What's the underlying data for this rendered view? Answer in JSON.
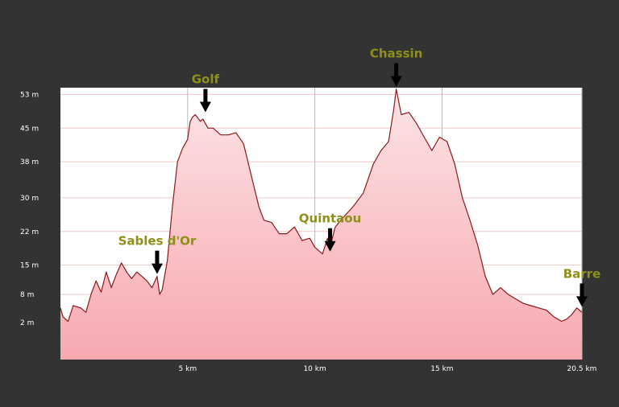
{
  "colors": {
    "background": "#333333",
    "plot_background": "#ffffff",
    "line": "#8b1a1a",
    "fill_top": "#fde4e6",
    "fill_bottom": "#f7a9b0",
    "label_olive": "#8f8f1a",
    "grid_vertical": "#b8b8b8",
    "grid_horizontal": "#f2c6c6"
  },
  "chart_data": {
    "type": "area",
    "title": "",
    "xlabel": "",
    "ylabel": "",
    "xlim": [
      0,
      20.5
    ],
    "ylim": [
      -6,
      54.5
    ],
    "grid": true,
    "yticks": [
      {
        "value": 2.2,
        "label": "2 m"
      },
      {
        "value": 8.5,
        "label": "8 m"
      },
      {
        "value": 15.0,
        "label": "15 m"
      },
      {
        "value": 22.5,
        "label": "22 m"
      },
      {
        "value": 30.0,
        "label": "30 m"
      },
      {
        "value": 38.0,
        "label": "38 m"
      },
      {
        "value": 45.5,
        "label": "45 m"
      },
      {
        "value": 53.0,
        "label": "53 m"
      }
    ],
    "xticks": [
      {
        "value": 5,
        "label": "5 km"
      },
      {
        "value": 10,
        "label": "10 km"
      },
      {
        "value": 15,
        "label": "15 km"
      },
      {
        "value": 20.5,
        "label": "20.5 km"
      }
    ],
    "series": [
      {
        "x": [
          0,
          0.1,
          0.3,
          0.5,
          0.8,
          1.0,
          1.2,
          1.4,
          1.6,
          1.8,
          2.0,
          2.2,
          2.4,
          2.6,
          2.8,
          3.0,
          3.2,
          3.4,
          3.6,
          3.8,
          3.9,
          4.0,
          4.2,
          4.4,
          4.6,
          4.8,
          5.0,
          5.1,
          5.2,
          5.3,
          5.5,
          5.6,
          5.8,
          6.0,
          6.3,
          6.6,
          6.9,
          7.2,
          7.5,
          7.8,
          8.0,
          8.3,
          8.6,
          8.9,
          9.2,
          9.5,
          9.8,
          10.0,
          10.3,
          10.5,
          10.6,
          10.8,
          11.1,
          11.5,
          11.9,
          12.3,
          12.6,
          12.9,
          13.1,
          13.2,
          13.4,
          13.7,
          14.0,
          14.3,
          14.6,
          14.9,
          15.2,
          15.5,
          15.8,
          16.1,
          16.4,
          16.7,
          17.0,
          17.3,
          17.6,
          17.9,
          18.2,
          18.5,
          18.8,
          19.1,
          19.4,
          19.7,
          19.9,
          20.1,
          20.3,
          20.5
        ],
        "values": [
          5.5,
          3.5,
          2.5,
          6,
          5.5,
          4.5,
          8.5,
          11.5,
          9,
          13.5,
          10,
          13,
          15.5,
          13.5,
          12,
          13.5,
          12.5,
          11.5,
          10,
          12.5,
          8.5,
          9.5,
          16,
          28,
          38,
          41,
          43,
          47,
          48,
          48.5,
          47,
          47.5,
          45.5,
          45.5,
          44,
          44,
          44.5,
          42,
          35,
          28,
          25,
          24.5,
          22,
          22,
          23.5,
          20.5,
          21,
          19,
          17.5,
          21,
          19,
          23.5,
          25.5,
          28,
          31,
          37.5,
          40.5,
          42.5,
          49.5,
          54.2,
          48.5,
          49,
          46.5,
          43.5,
          40.5,
          43.5,
          42.5,
          37.5,
          30,
          25,
          19.5,
          12.5,
          8.5,
          10,
          8.5,
          7.5,
          6.5,
          6,
          5.5,
          5,
          3.5,
          2.5,
          3,
          4,
          5.5,
          4.5
        ]
      }
    ],
    "annotations": [
      {
        "label": "Sables d'Or",
        "x": 3.8,
        "y": 12.5
      },
      {
        "label": "Golf",
        "x": 5.7,
        "y": 48.5
      },
      {
        "label": "Quintaou",
        "x": 10.6,
        "y": 17.5
      },
      {
        "label": "Chassin",
        "x": 13.2,
        "y": 54.2
      },
      {
        "label": "Barre",
        "x": 20.5,
        "y": 5.2
      }
    ]
  }
}
